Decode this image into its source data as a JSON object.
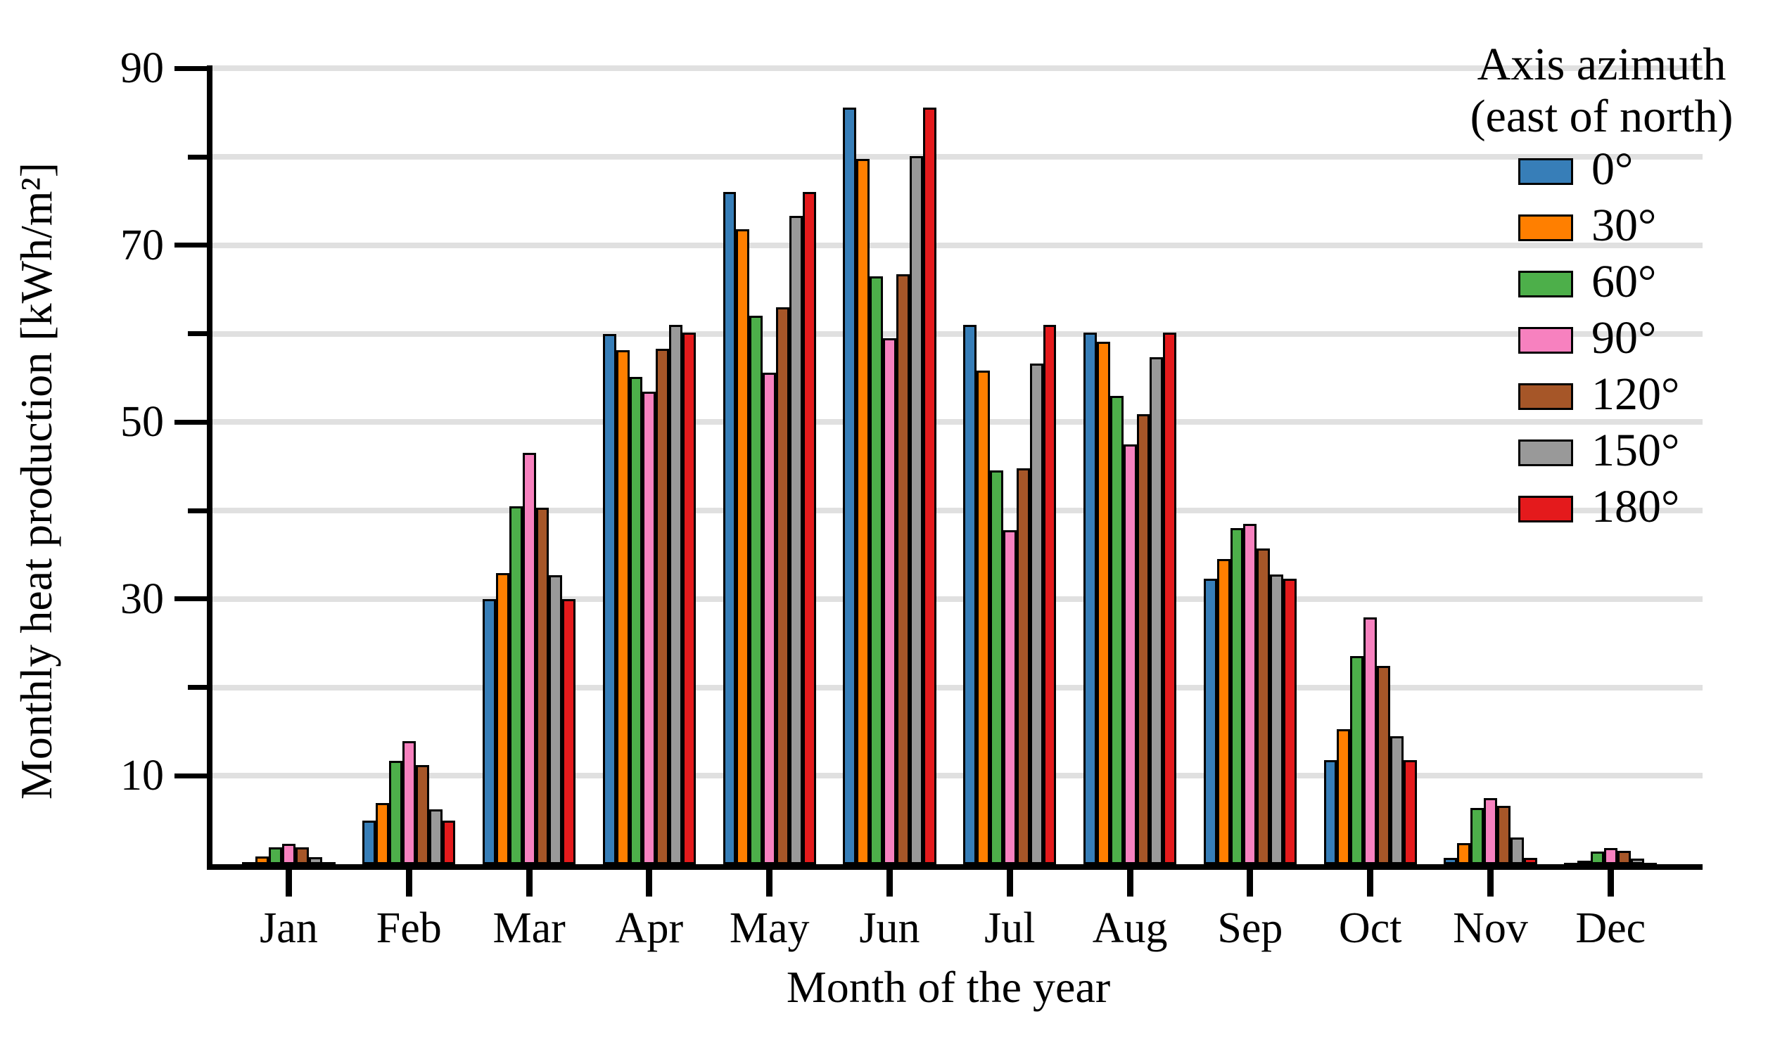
{
  "chart_data": {
    "type": "bar",
    "title": "",
    "xlabel": "Month of the year",
    "ylabel": "Monthly heat production [kWh/m²]",
    "categories": [
      "Jan",
      "Feb",
      "Mar",
      "Apr",
      "May",
      "Jun",
      "Jul",
      "Aug",
      "Sep",
      "Oct",
      "Nov",
      "Dec"
    ],
    "legend_title_line1": "Axis azimuth",
    "legend_title_line2": "(east of north)",
    "legend_position": "top-right, frameless, inside upper right of figure",
    "grid": "horizontal light-gray gridlines every 10 units",
    "ylim": [
      0,
      90.5
    ],
    "yticks_labeled": [
      90,
      70,
      50,
      30,
      10
    ],
    "yticks_minor": [
      80,
      60,
      40,
      20
    ],
    "series": [
      {
        "name": "0°",
        "color": "#377eb8",
        "values": [
          0.2,
          4.9,
          30.0,
          60.0,
          76.0,
          85.6,
          61.0,
          60.1,
          32.3,
          11.8,
          0.7,
          0.15
        ]
      },
      {
        "name": "30°",
        "color": "#ff7f00",
        "values": [
          0.9,
          6.9,
          32.9,
          58.1,
          71.8,
          79.8,
          55.8,
          59.1,
          34.5,
          15.3,
          2.4,
          0.4
        ]
      },
      {
        "name": "60°",
        "color": "#4daf4a",
        "values": [
          1.9,
          11.7,
          40.5,
          55.1,
          62.0,
          66.5,
          44.5,
          53.0,
          38.0,
          23.5,
          6.4,
          1.4
        ]
      },
      {
        "name": "90°",
        "color": "#f781bf",
        "values": [
          2.3,
          13.9,
          46.5,
          53.4,
          55.6,
          59.5,
          37.8,
          47.5,
          38.5,
          27.9,
          7.5,
          1.8
        ]
      },
      {
        "name": "120°",
        "color": "#a65628",
        "values": [
          1.9,
          11.2,
          40.3,
          58.3,
          63.0,
          66.7,
          44.8,
          50.9,
          35.7,
          22.4,
          6.6,
          1.5
        ]
      },
      {
        "name": "150°",
        "color": "#999999",
        "values": [
          0.8,
          6.2,
          32.7,
          61.0,
          73.3,
          80.1,
          56.6,
          57.3,
          32.8,
          14.5,
          3.0,
          0.6
        ]
      },
      {
        "name": "180°",
        "color": "#e41a1c",
        "values": [
          0.2,
          4.9,
          30.0,
          60.1,
          76.0,
          85.6,
          61.0,
          60.1,
          32.3,
          11.8,
          0.7,
          0.15
        ]
      }
    ]
  }
}
